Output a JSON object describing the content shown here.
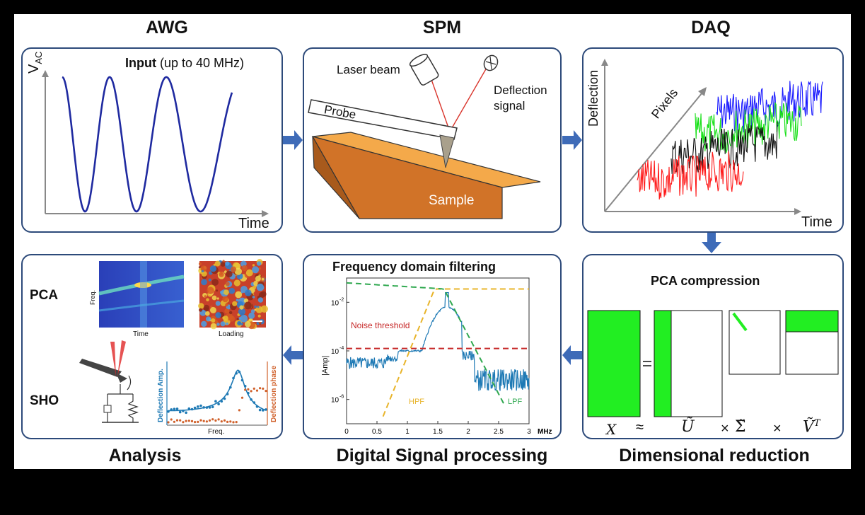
{
  "titles": {
    "awg": "AWG",
    "spm": "SPM",
    "daq": "DAQ",
    "analysis": "Analysis",
    "dsp": "Digital Signal processing",
    "dimred": "Dimensional reduction"
  },
  "awg": {
    "y_label": "V",
    "y_sub": "AC",
    "input_bold": "Input",
    "input_rest": " (up to 40 MHz)",
    "x_label": "Time"
  },
  "spm": {
    "laser": "Laser beam",
    "deflection1": "Deflection",
    "deflection2": "signal",
    "probe": "Probe",
    "sample": "Sample"
  },
  "daq": {
    "y_label": "Deflection",
    "z_label": "Pixels",
    "x_label": "Time",
    "series_colors": [
      "#ff1a1a",
      "#111111",
      "#18e018",
      "#1a1aff"
    ]
  },
  "pca": {
    "title": "PCA compression",
    "x": "X",
    "approx": "≈",
    "u": "Ũ",
    "times1": "×",
    "sigma": "Σ̃",
    "times2": "×",
    "v": "Ṽ",
    "v_sup": "T",
    "fill": "#22ee22"
  },
  "dsp": {
    "title": "Frequency domain filtering",
    "noise": "Noise threshold",
    "hpf": "HPF",
    "lpf": "LPF",
    "ylabel": "|Amp|",
    "xunit": "MHz",
    "yticks": [
      {
        "b": "10",
        "e": "-2"
      },
      {
        "b": "10",
        "e": "-4"
      },
      {
        "b": "10",
        "e": "-6"
      }
    ],
    "xticks": [
      "0",
      "0.5",
      "1",
      "1.5",
      "2",
      "2.5",
      "3"
    ]
  },
  "analysis": {
    "pca_label": "PCA",
    "sho_label": "SHO",
    "freq": "Freq.",
    "time": "Time",
    "loading": "Loading",
    "defl_amp": "Deflection Amp.",
    "defl_phase": "Deflection phase",
    "freq2": "Freq."
  },
  "colors": {
    "awg_line": "#1f2aa0",
    "panel_border": "#2d4a7a",
    "arrow": "#3e6bb8",
    "sample_top": "#f4a94a",
    "sample_front": "#d17328",
    "sample_side": "#a85a1c",
    "laser": "#d9342b",
    "noise": "#c62828",
    "hpf": "#e8b42a",
    "lpf": "#2fa84f",
    "spectrum": "#1f7ab5",
    "amp": "#1f7ab5",
    "phase": "#d0602a"
  }
}
